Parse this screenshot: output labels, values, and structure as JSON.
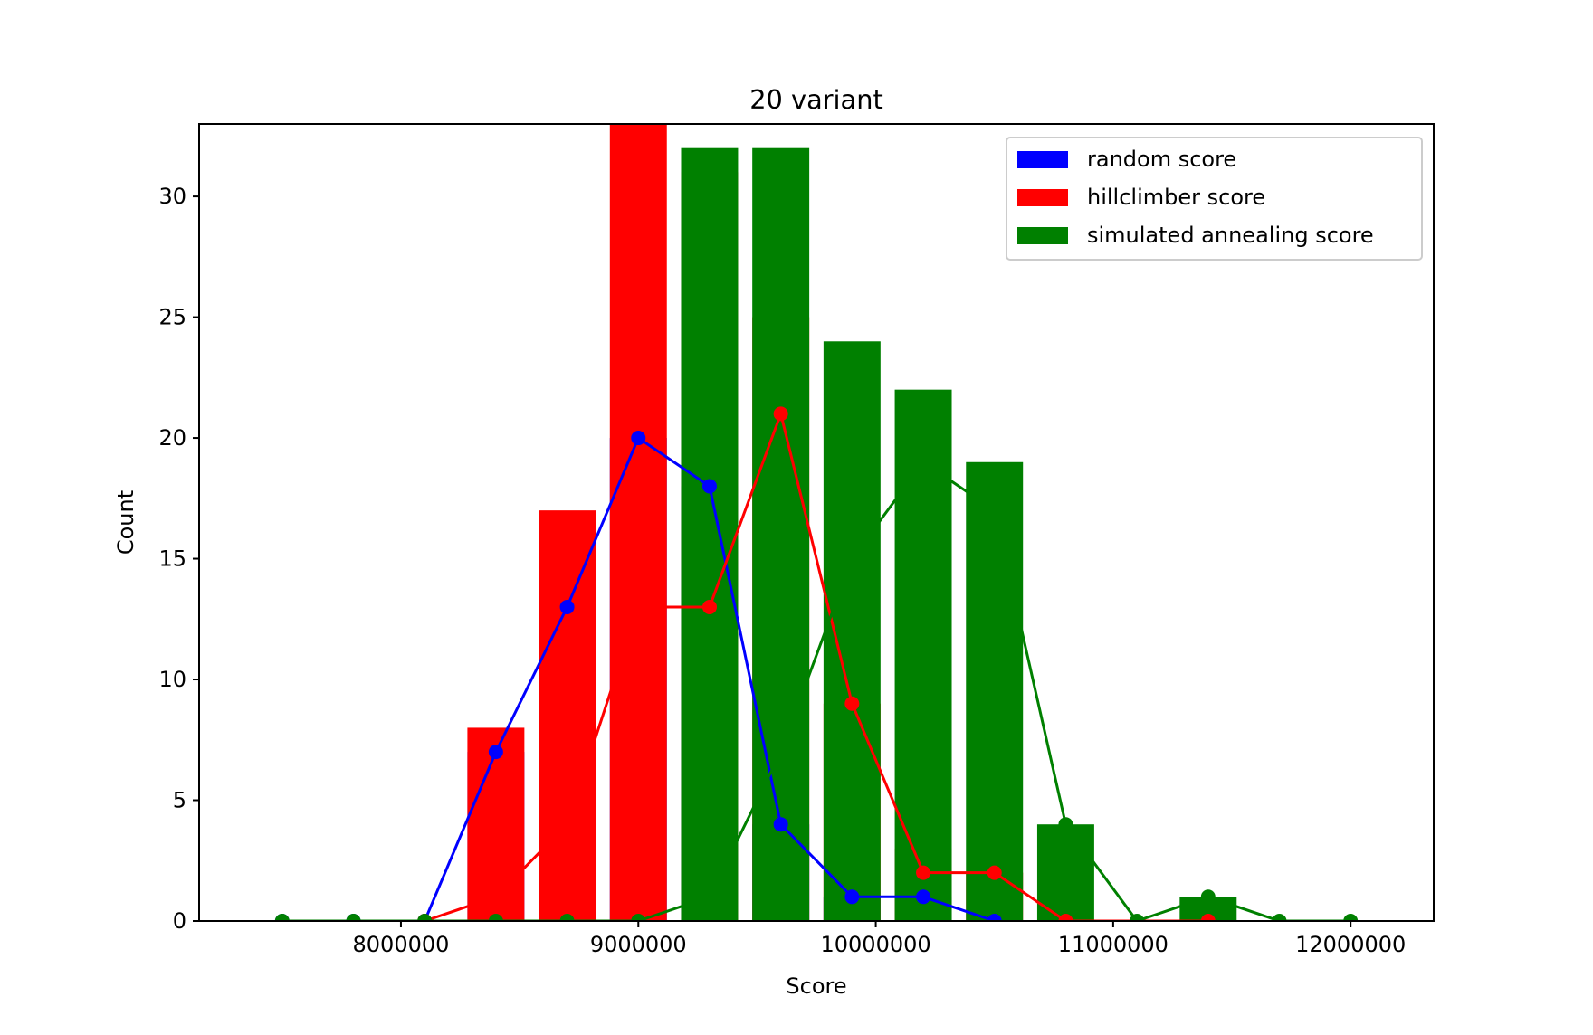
{
  "chart_data": {
    "type": "bar",
    "title": "20 variant",
    "xlabel": "Score",
    "ylabel": "Count",
    "xlim": [
      7150000,
      12350000
    ],
    "ylim": [
      0,
      33
    ],
    "xticks": [
      8000000,
      9000000,
      10000000,
      11000000,
      12000000
    ],
    "xtick_labels": [
      "8000000",
      "9000000",
      "10000000",
      "11000000",
      "12000000"
    ],
    "yticks": [
      0,
      5,
      10,
      15,
      20,
      25,
      30
    ],
    "ytick_labels": [
      "0",
      "5",
      "10",
      "15",
      "20",
      "25",
      "30"
    ],
    "bar_width": 240000,
    "grid": false,
    "legend_position": "upper right",
    "series": [
      {
        "name": "random score",
        "color": "#0000ff",
        "bars": [
          [
            8400000,
            7
          ],
          [
            8700000,
            13
          ],
          [
            9000000,
            20
          ],
          [
            9300000,
            18
          ],
          [
            9600000,
            4
          ],
          [
            9900000,
            1
          ],
          [
            10200000,
            1
          ]
        ],
        "line": [
          [
            7500000,
            0
          ],
          [
            7800000,
            0
          ],
          [
            8100000,
            0
          ],
          [
            8400000,
            7
          ],
          [
            8700000,
            13
          ],
          [
            9000000,
            20
          ],
          [
            9300000,
            18
          ],
          [
            9600000,
            4
          ],
          [
            9900000,
            1
          ],
          [
            10200000,
            1
          ],
          [
            10500000,
            0
          ]
        ]
      },
      {
        "name": "hillclimber score",
        "color": "#ff0000",
        "bars": [
          [
            8400000,
            8
          ],
          [
            8700000,
            17
          ],
          [
            9000000,
            33
          ],
          [
            9300000,
            31
          ],
          [
            9600000,
            25
          ],
          [
            9900000,
            9
          ],
          [
            10200000,
            3
          ],
          [
            10500000,
            2
          ]
        ],
        "line": [
          [
            8100000,
            0
          ],
          [
            8400000,
            1
          ],
          [
            8700000,
            4
          ],
          [
            9000000,
            13
          ],
          [
            9300000,
            13
          ],
          [
            9600000,
            21
          ],
          [
            9900000,
            9
          ],
          [
            10200000,
            2
          ],
          [
            10500000,
            2
          ],
          [
            10800000,
            0
          ],
          [
            11400000,
            0
          ]
        ]
      },
      {
        "name": "simulated annealing score",
        "color": "#008000",
        "bars": [
          [
            9300000,
            32
          ],
          [
            9600000,
            32
          ],
          [
            9900000,
            24
          ],
          [
            10200000,
            22
          ],
          [
            10500000,
            19
          ],
          [
            10800000,
            4
          ],
          [
            11400000,
            1
          ]
        ],
        "line": [
          [
            7500000,
            0
          ],
          [
            7800000,
            0
          ],
          [
            8100000,
            0
          ],
          [
            8400000,
            0
          ],
          [
            8700000,
            0
          ],
          [
            9000000,
            0
          ],
          [
            9300000,
            1
          ],
          [
            9600000,
            7
          ],
          [
            9900000,
            15
          ],
          [
            10200000,
            19
          ],
          [
            10500000,
            17
          ],
          [
            10800000,
            4
          ],
          [
            11100000,
            0
          ],
          [
            11400000,
            1
          ],
          [
            11700000,
            0
          ],
          [
            12000000,
            0
          ]
        ]
      }
    ]
  }
}
